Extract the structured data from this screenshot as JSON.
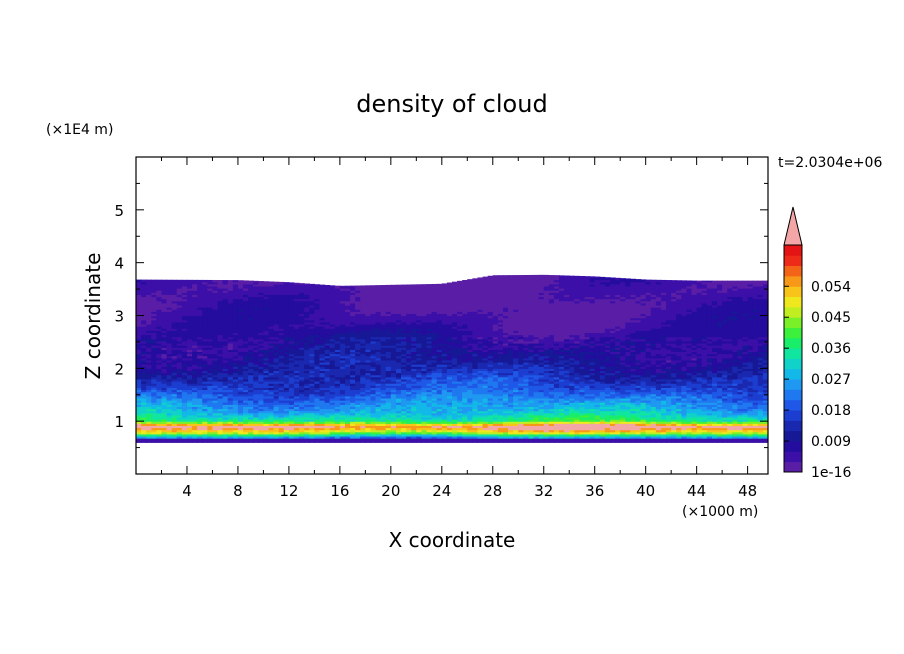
{
  "chart_data": {
    "type": "heatmap",
    "title": "density of cloud",
    "xlabel": "X coordinate",
    "ylabel": "Z coordinate",
    "x_unit": "(×1000 m)",
    "y_unit": "(×1E4 m)",
    "time_label": "t=2.0304e+06",
    "xlim": [
      0,
      49.6
    ],
    "ylim": [
      0,
      6
    ],
    "x_ticks": [
      4,
      8,
      12,
      16,
      20,
      24,
      28,
      32,
      36,
      40,
      44,
      48
    ],
    "y_ticks": [
      1,
      2,
      3,
      4,
      5
    ],
    "grid": false,
    "colorbar": {
      "labels": [
        {
          "value": 1e-16,
          "text": "1e-16"
        },
        {
          "value": 0.009,
          "text": "0.009"
        },
        {
          "value": 0.018,
          "text": "0.018"
        },
        {
          "value": 0.027,
          "text": "0.027"
        },
        {
          "value": 0.036,
          "text": "0.036"
        },
        {
          "value": 0.045,
          "text": "0.045"
        },
        {
          "value": 0.054,
          "text": "0.054"
        }
      ],
      "levels": 20,
      "extend": "max",
      "colors": [
        "#5a1ea6",
        "#3c10a8",
        "#240c9e",
        "#161896",
        "#1a28b0",
        "#1c3ed0",
        "#1f58e6",
        "#1f78f0",
        "#1e98f0",
        "#12b8e8",
        "#10d2c8",
        "#10e6a0",
        "#18ee6a",
        "#3cf03c",
        "#7af028",
        "#c0ee20",
        "#f0e81e",
        "#f8c41a",
        "#f89818",
        "#f46418",
        "#ee2a18",
        "#e41414"
      ],
      "over_color": "#f4a6a6"
    },
    "top_boundary_z": {
      "x": [
        0,
        8,
        12,
        16,
        20,
        24,
        28,
        32,
        36,
        40,
        44,
        49.6
      ],
      "z": [
        3.68,
        3.67,
        3.63,
        3.56,
        3.58,
        3.6,
        3.76,
        3.77,
        3.74,
        3.68,
        3.66,
        3.66
      ]
    },
    "bottom_boundary_z": 0.6,
    "profile": {
      "z": [
        0.6,
        0.68,
        0.72,
        0.78,
        0.84,
        0.9,
        0.96,
        1.0,
        1.1,
        1.2,
        1.3,
        1.45,
        1.6,
        1.8,
        2.0,
        2.2,
        2.4,
        2.6,
        2.8,
        3.0,
        3.2,
        3.5,
        3.7
      ],
      "density": [
        0.004,
        0.02,
        0.03,
        0.045,
        0.054,
        0.06,
        0.05,
        0.038,
        0.032,
        0.028,
        0.026,
        0.022,
        0.018,
        0.015,
        0.012,
        0.01,
        0.008,
        0.007,
        0.005,
        0.004,
        0.003,
        0.002,
        0.002
      ]
    }
  }
}
